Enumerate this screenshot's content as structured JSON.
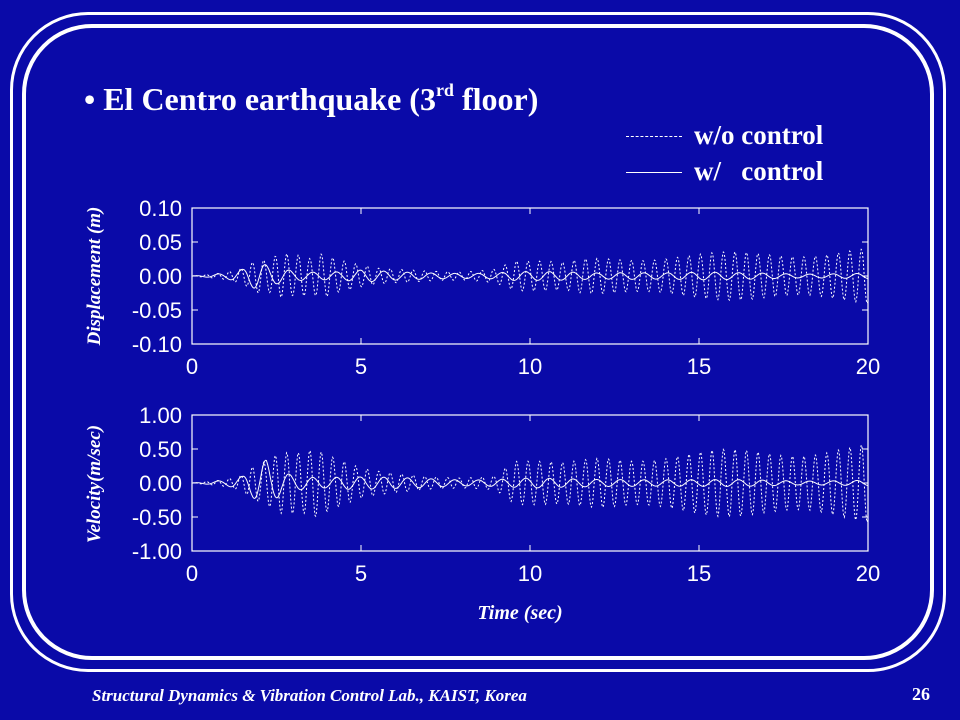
{
  "title": {
    "bullet": "•",
    "prefix": "El Centro earthquake (3",
    "superscript": "rd",
    "suffix": " floor)"
  },
  "legend": {
    "without_control": "w/o control",
    "with_control": "w/   control"
  },
  "footer": "Structural Dynamics & Vibration Control Lab., KAIST, Korea",
  "page_number": "26",
  "colors": {
    "background": "#0a0aa8",
    "foreground": "#ffffff"
  },
  "chart_data": [
    {
      "type": "line",
      "ylabel": "Displacement (m)",
      "xlabel": "",
      "xlim": [
        0,
        20
      ],
      "ylim": [
        -0.1,
        0.1
      ],
      "xticks": [
        "0",
        "5",
        "10",
        "15",
        "20"
      ],
      "yticks": [
        "0.10",
        "0.05",
        "0.00",
        "-0.05",
        "-0.10"
      ],
      "grid": false,
      "series": [
        {
          "name": "w/o control",
          "style": "dashed",
          "x": [
            0,
            1,
            1.5,
            1.7,
            2.0,
            2.2,
            2.5,
            2.8,
            3.0,
            3.2,
            3.5,
            3.8,
            4.0,
            4.3,
            4.6,
            5.0,
            5.5,
            6.0,
            7.0,
            8.0,
            9.0,
            9.3,
            9.6,
            10.0,
            10.5,
            11.0,
            11.5,
            12.0,
            12.5,
            13.0,
            14.0,
            15.0,
            16.0,
            17.0,
            18.0,
            19.0,
            20.0
          ],
          "envelope": [
            0.0,
            0.005,
            0.012,
            0.018,
            0.028,
            0.024,
            0.036,
            0.042,
            0.038,
            0.044,
            0.036,
            0.046,
            0.042,
            0.032,
            0.026,
            0.018,
            0.012,
            0.01,
            0.008,
            0.008,
            0.014,
            0.022,
            0.026,
            0.024,
            0.022,
            0.02,
            0.026,
            0.03,
            0.032,
            0.032,
            0.033,
            0.034,
            0.036,
            0.038,
            0.04,
            0.042,
            0.042
          ],
          "period": 0.34
        },
        {
          "name": "w/   control",
          "style": "solid",
          "x": [
            0,
            1,
            1.5,
            1.7,
            2.0,
            2.2,
            2.5,
            2.8,
            3.0,
            3.5,
            4.0,
            4.5,
            5.0,
            5.5,
            6.0,
            7.0,
            8.0,
            9.0,
            9.5,
            10.0,
            11.0,
            12.0,
            13.0,
            14.0,
            15.0,
            16.0,
            17.0,
            18.0,
            19.0,
            20.0
          ],
          "envelope": [
            0.0,
            0.004,
            0.01,
            0.016,
            0.022,
            0.018,
            0.014,
            0.012,
            0.01,
            0.008,
            0.008,
            0.008,
            0.01,
            0.008,
            0.006,
            0.005,
            0.005,
            0.006,
            0.008,
            0.007,
            0.006,
            0.005,
            0.007,
            0.006,
            0.006,
            0.005,
            0.005,
            0.004,
            0.004,
            0.004
          ],
          "period": 0.7
        }
      ]
    },
    {
      "type": "line",
      "ylabel": "Velocity(m/sec)",
      "xlabel": "Time (sec)",
      "xlim": [
        0,
        20
      ],
      "ylim": [
        -1.0,
        1.0
      ],
      "xticks": [
        "0",
        "5",
        "10",
        "15",
        "20"
      ],
      "yticks": [
        "1.00",
        "0.50",
        "0.00",
        "-0.50",
        "-1.00"
      ],
      "grid": false,
      "series": [
        {
          "name": "w/o control",
          "style": "dashed",
          "x": [
            0,
            1,
            1.5,
            1.8,
            2.0,
            2.3,
            2.6,
            3.0,
            3.3,
            3.6,
            3.9,
            4.2,
            4.5,
            5.0,
            5.5,
            6.0,
            7.0,
            8.0,
            9.0,
            9.3,
            9.6,
            10.0,
            10.5,
            11.0,
            11.5,
            12.0,
            12.5,
            13.0,
            14.0,
            15.0,
            16.0,
            17.0,
            18.0,
            19.0,
            20.0
          ],
          "envelope": [
            0.0,
            0.05,
            0.12,
            0.25,
            0.3,
            0.4,
            0.55,
            0.6,
            0.62,
            0.72,
            0.62,
            0.5,
            0.4,
            0.25,
            0.18,
            0.14,
            0.1,
            0.1,
            0.14,
            0.3,
            0.38,
            0.35,
            0.32,
            0.3,
            0.35,
            0.42,
            0.45,
            0.45,
            0.47,
            0.48,
            0.5,
            0.52,
            0.56,
            0.6,
            0.6
          ],
          "period": 0.34
        },
        {
          "name": "w/   control",
          "style": "solid",
          "x": [
            0,
            1,
            1.5,
            1.8,
            2.0,
            2.2,
            2.4,
            2.7,
            3.0,
            3.5,
            4.0,
            4.5,
            5.0,
            6.0,
            7.0,
            8.0,
            9.0,
            10.0,
            11.0,
            12.0,
            13.0,
            14.0,
            15.0,
            16.0,
            17.0,
            18.0,
            19.0,
            20.0
          ],
          "envelope": [
            0.0,
            0.04,
            0.1,
            0.22,
            0.32,
            0.38,
            0.3,
            0.2,
            0.15,
            0.12,
            0.1,
            0.12,
            0.1,
            0.08,
            0.07,
            0.06,
            0.07,
            0.08,
            0.06,
            0.06,
            0.07,
            0.06,
            0.05,
            0.05,
            0.05,
            0.04,
            0.04,
            0.04
          ],
          "period": 0.7
        }
      ]
    }
  ]
}
